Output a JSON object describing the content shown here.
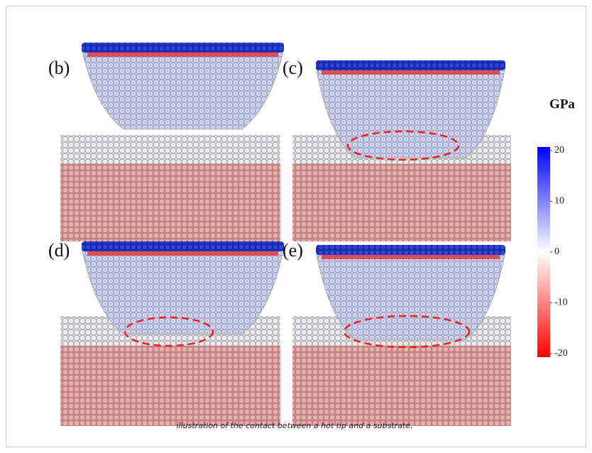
{
  "figure": {
    "panels": [
      {
        "label": "(b)"
      },
      {
        "label": "(c)"
      },
      {
        "label": "(d)"
      },
      {
        "label": "(e)"
      }
    ],
    "colorbar": {
      "label": "GPa",
      "lim": [
        -20,
        20
      ],
      "ticks": [
        20,
        10,
        0,
        -10,
        -20
      ]
    },
    "caption": "illustration of the contact between a hot tip and a substrate."
  }
}
